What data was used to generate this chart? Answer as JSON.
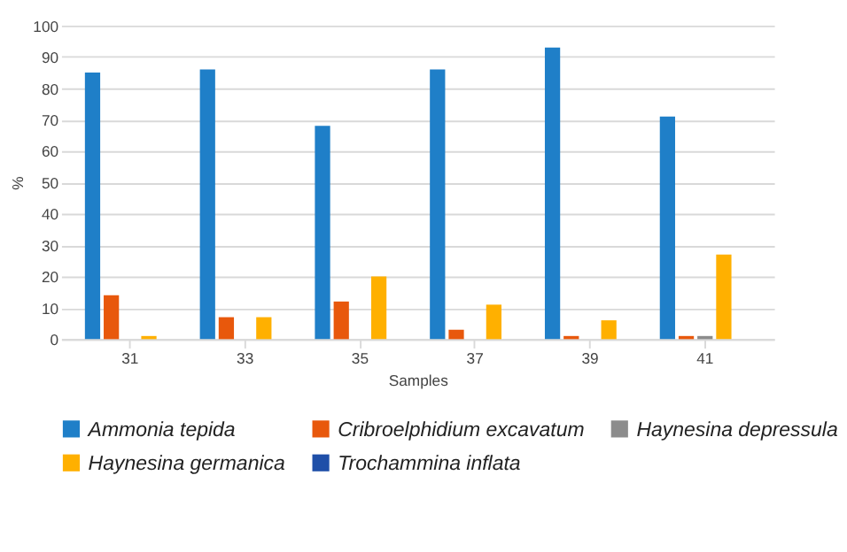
{
  "chart_data": {
    "type": "bar",
    "xlabel": "Samples",
    "ylabel": "%",
    "categories": [
      "31",
      "33",
      "35",
      "37",
      "39",
      "41"
    ],
    "series": [
      {
        "name": "Ammonia tepida",
        "color": "#1f7fc8",
        "values": [
          85,
          86,
          68,
          86,
          93,
          71
        ]
      },
      {
        "name": "Cribroelphidium excavatum",
        "color": "#e8580c",
        "values": [
          14,
          7,
          12,
          3,
          1,
          1
        ]
      },
      {
        "name": "Haynesina depressula",
        "color": "#8c8c8c",
        "values": [
          0,
          0,
          0,
          0,
          0,
          1
        ]
      },
      {
        "name": "Haynesina germanica",
        "color": "#ffb000",
        "values": [
          1,
          7,
          20,
          11,
          6,
          27
        ]
      },
      {
        "name": "Trochammina inflata",
        "color": "#1f4fa8",
        "values": [
          0,
          0,
          0,
          0,
          0,
          0
        ]
      }
    ],
    "ylim": [
      0,
      100
    ],
    "yticks": [
      0,
      10,
      20,
      30,
      40,
      50,
      60,
      70,
      80,
      90,
      100
    ],
    "grid": "y",
    "legend": "bottom"
  }
}
